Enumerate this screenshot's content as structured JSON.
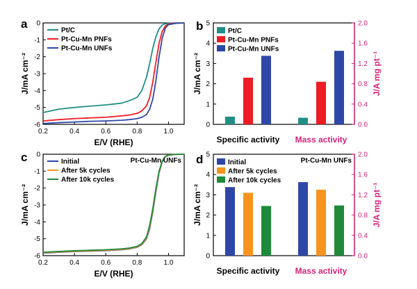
{
  "colors": {
    "teal": "#1f8f86",
    "red": "#ee1c24",
    "blue": "#2e47a7",
    "orange": "#f7941d",
    "green": "#1f8a3a",
    "magenta": "#d4237a",
    "axis": "#000000"
  },
  "chart_data": [
    {
      "panel": "a",
      "type": "line",
      "xlabel": "E/V (RHE)",
      "ylabel": "J/mA cm⁻²",
      "xlim": [
        0.2,
        1.1
      ],
      "ylim": [
        -6,
        0
      ],
      "xticks": [
        "0.2",
        "0.4",
        "0.6",
        "0.8",
        "1.0"
      ],
      "yticks": [
        "0",
        "-1",
        "-2",
        "-3",
        "-4",
        "-5",
        "-6"
      ],
      "legend_position": "top-left",
      "series": [
        {
          "name": "Pt/C",
          "color": "teal",
          "x": [
            0.2,
            0.3,
            0.4,
            0.5,
            0.6,
            0.7,
            0.75,
            0.8,
            0.83,
            0.86,
            0.88,
            0.9,
            0.92,
            0.94,
            0.96,
            0.98,
            1.0,
            1.05,
            1.1
          ],
          "y": [
            -5.3,
            -5.1,
            -5.0,
            -4.92,
            -4.85,
            -4.75,
            -4.6,
            -4.4,
            -4.0,
            -3.2,
            -2.4,
            -1.5,
            -0.8,
            -0.35,
            -0.12,
            -0.05,
            -0.02,
            0.0,
            0.0
          ]
        },
        {
          "name": "Pt-Cu-Mn PNFs",
          "color": "red",
          "x": [
            0.2,
            0.3,
            0.4,
            0.5,
            0.6,
            0.7,
            0.75,
            0.8,
            0.83,
            0.86,
            0.88,
            0.9,
            0.92,
            0.94,
            0.96,
            0.98,
            1.0,
            1.05,
            1.1
          ],
          "y": [
            -5.8,
            -5.72,
            -5.66,
            -5.62,
            -5.58,
            -5.5,
            -5.45,
            -5.35,
            -5.2,
            -4.9,
            -4.4,
            -3.5,
            -2.3,
            -1.2,
            -0.5,
            -0.18,
            -0.06,
            -0.01,
            0.0
          ]
        },
        {
          "name": "Pt-Cu-Mn UNFs",
          "color": "blue",
          "x": [
            0.2,
            0.3,
            0.4,
            0.5,
            0.6,
            0.7,
            0.75,
            0.8,
            0.83,
            0.86,
            0.88,
            0.9,
            0.92,
            0.94,
            0.96,
            0.98,
            1.0,
            1.05,
            1.1
          ],
          "y": [
            -5.95,
            -5.9,
            -5.86,
            -5.82,
            -5.8,
            -5.76,
            -5.72,
            -5.66,
            -5.58,
            -5.42,
            -5.1,
            -4.5,
            -3.4,
            -2.0,
            -0.9,
            -0.3,
            -0.1,
            -0.02,
            0.0
          ]
        }
      ]
    },
    {
      "panel": "b",
      "type": "bar",
      "ylabel": "J/mA cm⁻²",
      "y2label": "J/A mg pt⁻¹",
      "ylim": [
        0,
        5
      ],
      "y2lim": [
        0,
        2.0
      ],
      "yticks": [
        "0",
        "1",
        "2",
        "3",
        "4",
        "5"
      ],
      "y2ticks": [
        "0.0",
        "0.4",
        "0.8",
        "1.2",
        "1.6",
        "2.0"
      ],
      "groups": [
        {
          "label": "Specific activity",
          "axis": "left",
          "label_color": "axis"
        },
        {
          "label": "Mass activity",
          "axis": "right",
          "label_color": "magenta"
        }
      ],
      "series": [
        {
          "name": "Pt/C",
          "color": "teal",
          "values": [
            0.38,
            0.13
          ]
        },
        {
          "name": "Pt-Cu-Mn PNFs",
          "color": "red",
          "values": [
            2.3,
            0.84
          ]
        },
        {
          "name": "Pt-Cu-Mn UNFs",
          "color": "blue",
          "values": [
            3.38,
            1.45
          ]
        }
      ],
      "legend_position": "top-left"
    },
    {
      "panel": "c",
      "type": "line",
      "title": "Pt-Cu-Mn UNFs",
      "xlabel": "E/V (RHE)",
      "ylabel": "J/mA cm⁻²",
      "xlim": [
        0.2,
        1.1
      ],
      "ylim": [
        -6,
        0
      ],
      "xticks": [
        "0.2",
        "0.4",
        "0.6",
        "0.8",
        "1.0"
      ],
      "yticks": [
        "0",
        "-1",
        "-2",
        "-3",
        "-4",
        "-5",
        "-6"
      ],
      "legend_position": "top-left",
      "series": [
        {
          "name": "Initial",
          "color": "blue",
          "x": [
            0.2,
            0.3,
            0.4,
            0.5,
            0.6,
            0.7,
            0.75,
            0.8,
            0.83,
            0.86,
            0.88,
            0.9,
            0.92,
            0.94,
            0.96,
            0.98,
            1.0,
            1.05,
            1.1
          ],
          "y": [
            -5.85,
            -5.8,
            -5.76,
            -5.73,
            -5.7,
            -5.65,
            -5.6,
            -5.5,
            -5.35,
            -5.0,
            -4.4,
            -3.4,
            -2.2,
            -1.1,
            -0.45,
            -0.15,
            -0.05,
            -0.01,
            0.0
          ]
        },
        {
          "name": "After 5k cycles",
          "color": "orange",
          "x": [
            0.2,
            0.3,
            0.4,
            0.5,
            0.6,
            0.7,
            0.75,
            0.8,
            0.83,
            0.86,
            0.88,
            0.9,
            0.92,
            0.94,
            0.96,
            0.98,
            1.0,
            1.05,
            1.1
          ],
          "y": [
            -5.83,
            -5.78,
            -5.74,
            -5.71,
            -5.68,
            -5.63,
            -5.58,
            -5.48,
            -5.32,
            -4.95,
            -4.3,
            -3.3,
            -2.1,
            -1.05,
            -0.42,
            -0.14,
            -0.05,
            -0.01,
            0.0
          ]
        },
        {
          "name": "After 10k cycles",
          "color": "green",
          "x": [
            0.2,
            0.3,
            0.4,
            0.5,
            0.6,
            0.7,
            0.75,
            0.8,
            0.83,
            0.86,
            0.88,
            0.9,
            0.92,
            0.94,
            0.96,
            0.98,
            1.0,
            1.05,
            1.1
          ],
          "y": [
            -5.8,
            -5.75,
            -5.71,
            -5.68,
            -5.65,
            -5.6,
            -5.55,
            -5.45,
            -5.28,
            -4.88,
            -4.2,
            -3.2,
            -2.0,
            -1.0,
            -0.4,
            -0.13,
            -0.04,
            -0.01,
            0.0
          ]
        }
      ]
    },
    {
      "panel": "d",
      "type": "bar",
      "title": "Pt-Cu-Mn UNFs",
      "ylabel": "J/mA cm⁻²",
      "y2label": "J/A mg pt⁻¹",
      "ylim": [
        0,
        5
      ],
      "y2lim": [
        0,
        2.0
      ],
      "yticks": [
        "0",
        "1",
        "2",
        "3",
        "4",
        "5"
      ],
      "y2ticks": [
        "0.0",
        "0.4",
        "0.8",
        "1.2",
        "1.6",
        "2.0"
      ],
      "groups": [
        {
          "label": "Specific activity",
          "axis": "left",
          "label_color": "axis"
        },
        {
          "label": "Mass activity",
          "axis": "right",
          "label_color": "magenta"
        }
      ],
      "series": [
        {
          "name": "Initial",
          "color": "blue",
          "values": [
            3.38,
            1.45
          ]
        },
        {
          "name": "After 5k cycles",
          "color": "orange",
          "values": [
            3.1,
            1.3
          ]
        },
        {
          "name": "After 10k cycles",
          "color": "green",
          "values": [
            2.45,
            0.99
          ]
        }
      ],
      "legend_position": "top-left"
    }
  ]
}
